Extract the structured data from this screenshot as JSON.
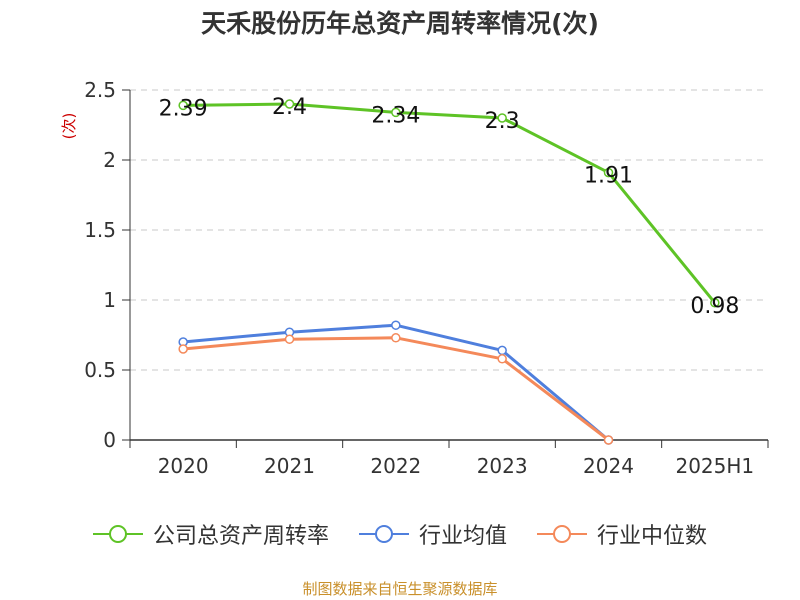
{
  "title": "天禾股份历年总资产周转率情况(次)",
  "source": "制图数据来自恒生聚源数据库",
  "chart_data": {
    "type": "line",
    "title": "天禾股份历年总资产周转率情况(次)",
    "ylabel": "(次)",
    "xlabel": "",
    "categories": [
      "2020",
      "2021",
      "2022",
      "2023",
      "2024",
      "2025H1"
    ],
    "ylim": [
      0,
      2.5
    ],
    "yticks": [
      0,
      0.5,
      1,
      1.5,
      2,
      2.5
    ],
    "ytick_labels": [
      "0",
      "0.5",
      "1",
      "1.5",
      "2",
      "2.5"
    ],
    "grid": true,
    "legend_position": "bottom",
    "series": [
      {
        "name": "公司总资产周转率",
        "color": "#5ec326",
        "values": [
          2.39,
          2.4,
          2.34,
          2.3,
          1.91,
          0.98
        ],
        "labels": [
          "2.39",
          "2.4",
          "2.34",
          "2.3",
          "1.91",
          "0.98"
        ]
      },
      {
        "name": "行业均值",
        "color": "#4f7fdd",
        "values": [
          0.7,
          0.77,
          0.82,
          0.64,
          0.0,
          null
        ]
      },
      {
        "name": "行业中位数",
        "color": "#f4895a",
        "values": [
          0.65,
          0.72,
          0.73,
          0.58,
          0.0,
          null
        ]
      }
    ]
  }
}
